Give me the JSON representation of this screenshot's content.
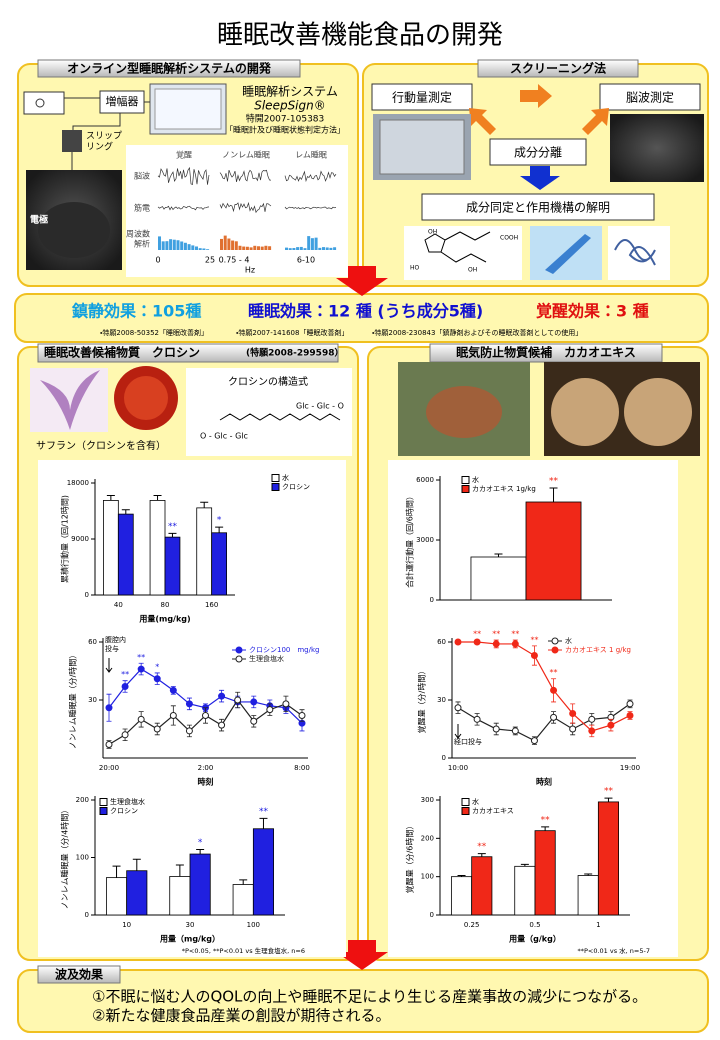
{
  "title": "睡眠改善機能食品の開発",
  "system": {
    "heading": "オンライン型睡眠解析システムの開発",
    "amplifier": "増幅器",
    "software": "睡眠解析システム",
    "software_name": "SleepSign®",
    "patent": "特開2007-105383",
    "patent_title": "「睡眠計及び睡眠状態判定方法」",
    "slip_ring": [
      "スリップ",
      "リング"
    ],
    "electrode": "電極",
    "states": [
      "覚醒",
      "ノンレム睡眠",
      "レム睡眠"
    ],
    "rows": [
      "脳波",
      "筋電",
      "周波数",
      "解析"
    ],
    "freq_labels": [
      "0",
      "25",
      "0.75 - 4",
      "6-10"
    ],
    "freq_unit": "Hz"
  },
  "screening": {
    "heading": "スクリーニング法",
    "activity": "行動量測定",
    "eeg": "脳波測定",
    "separation": "成分分離",
    "identification": "成分同定と作用機構の解明",
    "molecule_labels": [
      "COOH",
      "HO",
      "OH",
      "OH"
    ]
  },
  "results": {
    "sedative": "鎮静効果：105種",
    "sleep": "睡眠効果：12 種 (うち成分5種)",
    "arousal": "覚醒効果：3 種",
    "patents": [
      "・特願2008-50352「睡眠改善剤」",
      "・特願2007-141608「睡眠改善剤」",
      "・特願2008-230843「鎮静剤およびその睡眠改善剤としての使用」"
    ]
  },
  "crocin": {
    "heading": "睡眠改善候補物質　クロシン",
    "patent": "(特願2008-299598）",
    "saffron_caption": "サフラン（クロシンを含有）",
    "structure_title": "クロシンの構造式",
    "structure_labels": [
      "Glc - Glc - O",
      "O - Glc - Glc"
    ]
  },
  "cacao": {
    "heading": "眠気防止物質候補　カカオエキス"
  },
  "impact": {
    "heading": "波及効果",
    "lines": [
      "①不眠に悩む人のQOLの向上や睡眠不足により生じる産業事故の減少につながる。",
      "②新たな健康食品産業の創設が期待される。"
    ]
  },
  "chart_data": [
    {
      "type": "bar",
      "y_label": "累積行動量（回/12時間)",
      "x_label": "用量(mg/kg)",
      "categories": [
        "40",
        "80",
        "160"
      ],
      "series": [
        {
          "name": "水",
          "color": "#ffffff",
          "values": [
            15200,
            15200,
            14000
          ],
          "errors": [
            800,
            800,
            900
          ]
        },
        {
          "name": "クロシン",
          "color": "#2020e0",
          "values": [
            13000,
            9300,
            10000
          ],
          "errors": [
            700,
            600,
            900
          ],
          "significance": [
            null,
            "**",
            "*"
          ]
        }
      ],
      "ylim": [
        0,
        18000
      ],
      "yticks": [
        0,
        9000,
        18000
      ]
    },
    {
      "type": "line",
      "y_label": "ノンレム睡眠量（分/時間）",
      "x_label": "時刻",
      "annotation": [
        "腹腔内",
        "投与"
      ],
      "categories": [
        "20:00",
        null,
        null,
        null,
        null,
        null,
        "2:00",
        null,
        null,
        null,
        null,
        null,
        "8:00"
      ],
      "series": [
        {
          "name": "クロシン100　mg/kg",
          "color": "#2020e0",
          "marker": "filled",
          "values": [
            26,
            37,
            46,
            41,
            35,
            28,
            26,
            32,
            29,
            29,
            27,
            26,
            18
          ],
          "errors": [
            7,
            3,
            3,
            3,
            2,
            3,
            2,
            3,
            3,
            3,
            3,
            3,
            4
          ],
          "significance": [
            null,
            "**",
            "**",
            "*",
            null,
            null,
            null,
            null,
            null,
            null,
            null,
            null,
            null
          ]
        },
        {
          "name": "生理食塩水",
          "color": "#222222",
          "marker": "open",
          "values": [
            7,
            12,
            20,
            15,
            22,
            14,
            22,
            17,
            30,
            19,
            25,
            28,
            22
          ],
          "errors": [
            2,
            3,
            4,
            3,
            5,
            3,
            4,
            3,
            4,
            3,
            3,
            4,
            3
          ]
        }
      ],
      "ylim": [
        0,
        60
      ],
      "yticks": [
        30,
        60
      ]
    },
    {
      "type": "bar",
      "y_label": "ノンレム睡眠量（分/4時間）",
      "x_label": "用量（mg/kg）",
      "footnote": "*P<0.05, **P<0.01 vs 生理食塩水, n=6",
      "categories": [
        "10",
        "30",
        "100"
      ],
      "series": [
        {
          "name": "生理食塩水",
          "color": "#ffffff",
          "values": [
            65,
            67,
            53
          ],
          "errors": [
            20,
            20,
            8
          ]
        },
        {
          "name": "クロシン",
          "color": "#2020e0",
          "values": [
            77,
            106,
            150
          ],
          "errors": [
            20,
            8,
            18
          ],
          "significance": [
            null,
            "*",
            "**"
          ]
        }
      ],
      "ylim": [
        0,
        200
      ],
      "yticks": [
        0,
        100,
        200
      ]
    },
    {
      "type": "bar",
      "y_label": "合計運行動量（回/6時間）",
      "series": [
        {
          "name": "水",
          "color": "#ffffff",
          "values": [
            2150
          ],
          "errors": [
            150
          ]
        },
        {
          "name": "カカオエキス 1g/kg",
          "color": "#f02818",
          "values": [
            4900
          ],
          "errors": [
            700
          ],
          "significance": [
            "**"
          ]
        }
      ],
      "ylim": [
        0,
        6000
      ],
      "yticks": [
        0,
        3000,
        6000
      ]
    },
    {
      "type": "line",
      "y_label": "覚醒量（分/時間）",
      "x_label": "時刻",
      "annotation": [
        "経口投与"
      ],
      "categories": [
        "10:00",
        null,
        null,
        null,
        null,
        null,
        null,
        null,
        null,
        "19:00"
      ],
      "series": [
        {
          "name": "水",
          "color": "#222222",
          "marker": "open",
          "values": [
            26,
            20,
            15,
            14,
            9,
            21,
            15,
            20,
            21,
            28
          ],
          "errors": [
            3,
            3,
            3,
            2,
            2,
            3,
            3,
            3,
            3,
            2
          ]
        },
        {
          "name": "カカオエキス 1 g/kg",
          "color": "#f02818",
          "marker": "filled",
          "values": [
            60,
            60,
            59,
            59,
            53,
            35,
            23,
            14,
            17,
            22
          ],
          "errors": [
            1,
            1,
            2,
            2,
            5,
            6,
            5,
            3,
            3,
            2
          ],
          "significance": [
            null,
            "**",
            "**",
            "**",
            "**",
            "**",
            null,
            null,
            null,
            null
          ]
        }
      ],
      "ylim": [
        0,
        60
      ],
      "yticks": [
        0,
        30,
        60
      ]
    },
    {
      "type": "bar",
      "y_label": "覚醒量（分/6時間）",
      "x_label": "用量（g/kg）",
      "footnote": "**P<0.01 vs 水, n=5-7",
      "categories": [
        "0.25",
        "0.5",
        "1"
      ],
      "series": [
        {
          "name": "水",
          "color": "#ffffff",
          "values": [
            100,
            127,
            103
          ],
          "errors": [
            3,
            5,
            4
          ]
        },
        {
          "name": "カカオエキス",
          "color": "#f02818",
          "values": [
            152,
            220,
            295
          ],
          "errors": [
            8,
            10,
            10
          ],
          "significance": [
            "**",
            "**",
            "**"
          ]
        }
      ],
      "ylim": [
        0,
        300
      ],
      "yticks": [
        0,
        100,
        200,
        300
      ]
    }
  ]
}
